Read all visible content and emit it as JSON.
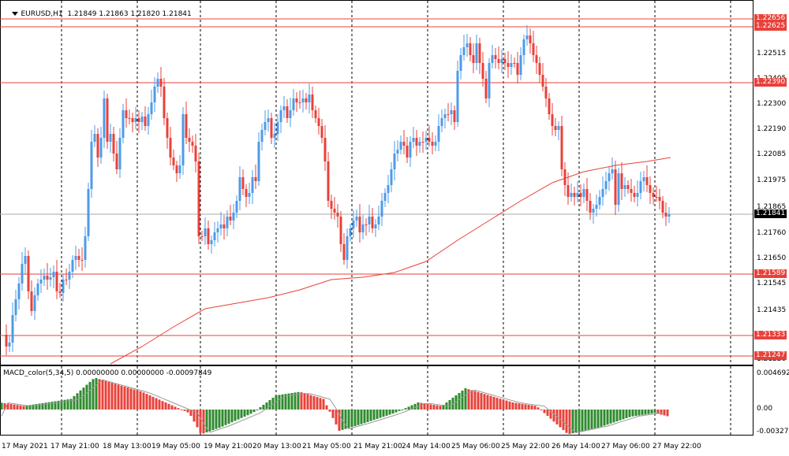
{
  "main_legend": {
    "symbol": "EURUSD,H1",
    "ohlc": "1.21849 1.21863 1.21820 1.21841"
  },
  "macd_legend": {
    "text": "MACD_color(5,34,5) 0.00000000 0.00000000 -0.00097849"
  },
  "price_axis": {
    "ticks": [
      "1.22515",
      "1.22405",
      "1.22300",
      "1.22190",
      "1.22085",
      "1.21975",
      "1.21865",
      "1.21760",
      "1.21650",
      "1.21545",
      "1.21435",
      "1.21325",
      "1.21220"
    ],
    "levels": [
      {
        "label": "1.22656",
        "color": "#e8413a"
      },
      {
        "label": "1.22625",
        "color": "#e8413a"
      },
      {
        "label": "1.22390",
        "color": "#e8413a"
      },
      {
        "label": "1.21589",
        "color": "#e8413a"
      },
      {
        "label": "1.21333",
        "color": "#e8413a"
      },
      {
        "label": "1.21247",
        "color": "#e8413a"
      }
    ],
    "current": {
      "label": "1.21841",
      "color": "#000000"
    }
  },
  "macd_axis": {
    "ticks": [
      "0.0046928",
      "0.00",
      "-0.0032700"
    ]
  },
  "time_axis": {
    "labels": [
      "17 May 2021",
      "17 May 21:00",
      "18 May 13:00",
      "19 May 05:00",
      "19 May 21:00",
      "20 May 13:00",
      "21 May 05:00",
      "21 May 21:00",
      "24 May 14:00",
      "25 May 06:00",
      "25 May 22:00",
      "26 May 14:00",
      "27 May 06:00",
      "27 May 22:00"
    ]
  },
  "colors": {
    "bull": "#4e9be8",
    "bear": "#e8413a",
    "ma": "#e8413a",
    "macd_up": "#2e8b2e",
    "macd_down": "#e8413a",
    "grid": "#000000"
  }
}
